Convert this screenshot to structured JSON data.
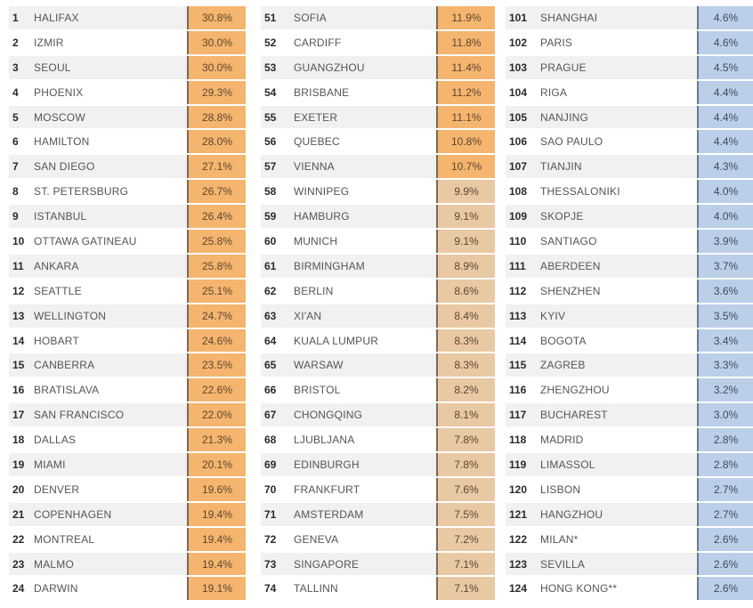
{
  "colors": {
    "orange": "#f5b56e",
    "tan": "#e8c9a3",
    "blue": "#bccfe9"
  },
  "groups": [
    {
      "rows": [
        {
          "rank": "1",
          "city": "HALIFAX",
          "value": "30.8%",
          "color": "orange"
        },
        {
          "rank": "2",
          "city": "IZMIR",
          "value": "30.0%",
          "color": "orange"
        },
        {
          "rank": "3",
          "city": "SEOUL",
          "value": "30.0%",
          "color": "orange"
        },
        {
          "rank": "4",
          "city": "PHOENIX",
          "value": "29.3%",
          "color": "orange"
        },
        {
          "rank": "5",
          "city": "MOSCOW",
          "value": "28.8%",
          "color": "orange"
        },
        {
          "rank": "6",
          "city": "HAMILTON",
          "value": "28.0%",
          "color": "orange"
        },
        {
          "rank": "7",
          "city": "SAN DIEGO",
          "value": "27.1%",
          "color": "orange"
        },
        {
          "rank": "8",
          "city": "ST. PETERSBURG",
          "value": "26.7%",
          "color": "orange"
        },
        {
          "rank": "9",
          "city": "ISTANBUL",
          "value": "26.4%",
          "color": "orange"
        },
        {
          "rank": "10",
          "city": "OTTAWA GATINEAU",
          "value": "25.8%",
          "color": "orange"
        },
        {
          "rank": "11",
          "city": "ANKARA",
          "value": "25.8%",
          "color": "orange"
        },
        {
          "rank": "12",
          "city": "SEATTLE",
          "value": "25.1%",
          "color": "orange"
        },
        {
          "rank": "13",
          "city": "WELLINGTON",
          "value": "24.7%",
          "color": "orange"
        },
        {
          "rank": "14",
          "city": "HOBART",
          "value": "24.6%",
          "color": "orange"
        },
        {
          "rank": "15",
          "city": "CANBERRA",
          "value": "23.5%",
          "color": "orange"
        },
        {
          "rank": "16",
          "city": "BRATISLAVA",
          "value": "22.6%",
          "color": "orange"
        },
        {
          "rank": "17",
          "city": "SAN FRANCISCO",
          "value": "22.0%",
          "color": "orange"
        },
        {
          "rank": "18",
          "city": "DALLAS",
          "value": "21.3%",
          "color": "orange"
        },
        {
          "rank": "19",
          "city": "MIAMI",
          "value": "20.1%",
          "color": "orange"
        },
        {
          "rank": "20",
          "city": "DENVER",
          "value": "19.6%",
          "color": "orange"
        },
        {
          "rank": "21",
          "city": "COPENHAGEN",
          "value": "19.4%",
          "color": "orange"
        },
        {
          "rank": "22",
          "city": "MONTREAL",
          "value": "19.4%",
          "color": "orange"
        },
        {
          "rank": "23",
          "city": "MALMO",
          "value": "19.4%",
          "color": "orange"
        },
        {
          "rank": "24",
          "city": "DARWIN",
          "value": "19.1%",
          "color": "orange"
        }
      ]
    },
    {
      "rows": [
        {
          "rank": "51",
          "city": "SOFIA",
          "value": "11.9%",
          "color": "orange"
        },
        {
          "rank": "52",
          "city": "CARDIFF",
          "value": "11.8%",
          "color": "orange"
        },
        {
          "rank": "53",
          "city": "GUANGZHOU",
          "value": "11.4%",
          "color": "orange"
        },
        {
          "rank": "54",
          "city": "BRISBANE",
          "value": "11.2%",
          "color": "orange"
        },
        {
          "rank": "55",
          "city": "EXETER",
          "value": "11.1%",
          "color": "orange"
        },
        {
          "rank": "56",
          "city": "QUEBEC",
          "value": "10.8%",
          "color": "orange"
        },
        {
          "rank": "57",
          "city": "VIENNA",
          "value": "10.7%",
          "color": "orange"
        },
        {
          "rank": "58",
          "city": "WINNIPEG",
          "value": "9.9%",
          "color": "tan"
        },
        {
          "rank": "59",
          "city": "HAMBURG",
          "value": "9.1%",
          "color": "tan"
        },
        {
          "rank": "60",
          "city": "MUNICH",
          "value": "9.1%",
          "color": "tan"
        },
        {
          "rank": "61",
          "city": "BIRMINGHAM",
          "value": "8.9%",
          "color": "tan"
        },
        {
          "rank": "62",
          "city": "BERLIN",
          "value": "8.6%",
          "color": "tan"
        },
        {
          "rank": "63",
          "city": "XI'AN",
          "value": "8.4%",
          "color": "tan"
        },
        {
          "rank": "64",
          "city": "KUALA LUMPUR",
          "value": "8.3%",
          "color": "tan"
        },
        {
          "rank": "65",
          "city": "WARSAW",
          "value": "8.3%",
          "color": "tan"
        },
        {
          "rank": "66",
          "city": "BRISTOL",
          "value": "8.2%",
          "color": "tan"
        },
        {
          "rank": "67",
          "city": "CHONGQING",
          "value": "8.1%",
          "color": "tan"
        },
        {
          "rank": "68",
          "city": "LJUBLJANA",
          "value": "7.8%",
          "color": "tan"
        },
        {
          "rank": "69",
          "city": "EDINBURGH",
          "value": "7.8%",
          "color": "tan"
        },
        {
          "rank": "70",
          "city": "FRANKFURT",
          "value": "7.6%",
          "color": "tan"
        },
        {
          "rank": "71",
          "city": "AMSTERDAM",
          "value": "7.5%",
          "color": "tan"
        },
        {
          "rank": "72",
          "city": "GENEVA",
          "value": "7.2%",
          "color": "tan"
        },
        {
          "rank": "73",
          "city": "SINGAPORE",
          "value": "7.1%",
          "color": "tan"
        },
        {
          "rank": "74",
          "city": "TALLINN",
          "value": "7.1%",
          "color": "tan"
        }
      ]
    },
    {
      "rows": [
        {
          "rank": "101",
          "city": "SHANGHAI",
          "value": "4.6%",
          "color": "blue"
        },
        {
          "rank": "102",
          "city": "PARIS",
          "value": "4.6%",
          "color": "blue"
        },
        {
          "rank": "103",
          "city": "PRAGUE",
          "value": "4.5%",
          "color": "blue"
        },
        {
          "rank": "104",
          "city": "RIGA",
          "value": "4.4%",
          "color": "blue"
        },
        {
          "rank": "105",
          "city": "NANJING",
          "value": "4.4%",
          "color": "blue"
        },
        {
          "rank": "106",
          "city": "SAO PAULO",
          "value": "4.4%",
          "color": "blue"
        },
        {
          "rank": "107",
          "city": "TIANJIN",
          "value": "4.3%",
          "color": "blue"
        },
        {
          "rank": "108",
          "city": "THESSALONIKI",
          "value": "4.0%",
          "color": "blue"
        },
        {
          "rank": "109",
          "city": "SKOPJE",
          "value": "4.0%",
          "color": "blue"
        },
        {
          "rank": "110",
          "city": "SANTIAGO",
          "value": "3.9%",
          "color": "blue"
        },
        {
          "rank": "111",
          "city": "ABERDEEN",
          "value": "3.7%",
          "color": "blue"
        },
        {
          "rank": "112",
          "city": "SHENZHEN",
          "value": "3.6%",
          "color": "blue"
        },
        {
          "rank": "113",
          "city": "KYIV",
          "value": "3.5%",
          "color": "blue"
        },
        {
          "rank": "114",
          "city": "BOGOTA",
          "value": "3.4%",
          "color": "blue"
        },
        {
          "rank": "115",
          "city": "ZAGREB",
          "value": "3.3%",
          "color": "blue"
        },
        {
          "rank": "116",
          "city": "ZHENGZHOU",
          "value": "3.2%",
          "color": "blue"
        },
        {
          "rank": "117",
          "city": "BUCHAREST",
          "value": "3.0%",
          "color": "blue"
        },
        {
          "rank": "118",
          "city": "MADRID",
          "value": "2.8%",
          "color": "blue"
        },
        {
          "rank": "119",
          "city": "LIMASSOL",
          "value": "2.8%",
          "color": "blue"
        },
        {
          "rank": "120",
          "city": "LISBON",
          "value": "2.7%",
          "color": "blue"
        },
        {
          "rank": "121",
          "city": "HANGZHOU",
          "value": "2.7%",
          "color": "blue"
        },
        {
          "rank": "122",
          "city": "MILAN*",
          "value": "2.6%",
          "color": "blue"
        },
        {
          "rank": "123",
          "city": "SEVILLA",
          "value": "2.6%",
          "color": "blue"
        },
        {
          "rank": "124",
          "city": "HONG KONG**",
          "value": "2.6%",
          "color": "blue"
        }
      ]
    }
  ]
}
